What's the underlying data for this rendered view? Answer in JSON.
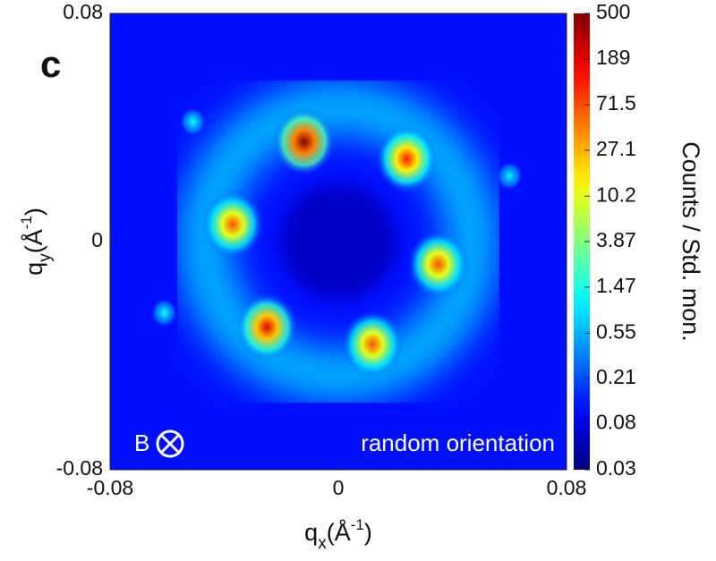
{
  "chart_data": {
    "type": "heatmap",
    "panel_label": "c",
    "xlabel": [
      "q",
      "x",
      "(Å",
      "-1",
      ")"
    ],
    "ylabel": [
      "q",
      "y",
      "(Å",
      "-1",
      ")"
    ],
    "xlim": [
      -0.08,
      0.08
    ],
    "ylim": [
      -0.08,
      0.08
    ],
    "xticks": [
      -0.08,
      0,
      0.08
    ],
    "yticks": [
      -0.08,
      0,
      0.08
    ],
    "colorbar_label": "Counts / Std. mon.",
    "clim": [
      0.03,
      500
    ],
    "color_scale": "log",
    "colormap": "jet",
    "cticks": [
      500,
      189,
      71.5,
      27.1,
      10.2,
      3.87,
      1.47,
      0.55,
      0.21,
      0.08,
      0.03
    ],
    "annotations": [
      "B",
      "random orientation"
    ],
    "spots": [
      {
        "x": -0.012,
        "y": 0.035,
        "value": 500
      },
      {
        "x": 0.024,
        "y": 0.029,
        "value": 120
      },
      {
        "x": -0.037,
        "y": 0.006,
        "value": 70
      },
      {
        "x": 0.035,
        "y": -0.008,
        "value": 70
      },
      {
        "x": -0.025,
        "y": -0.03,
        "value": 200
      },
      {
        "x": 0.012,
        "y": -0.036,
        "value": 70
      },
      {
        "x": -0.051,
        "y": 0.042,
        "value": 1.5
      },
      {
        "x": 0.06,
        "y": 0.023,
        "value": 1.2
      },
      {
        "x": -0.061,
        "y": -0.025,
        "value": 1.5
      }
    ]
  }
}
